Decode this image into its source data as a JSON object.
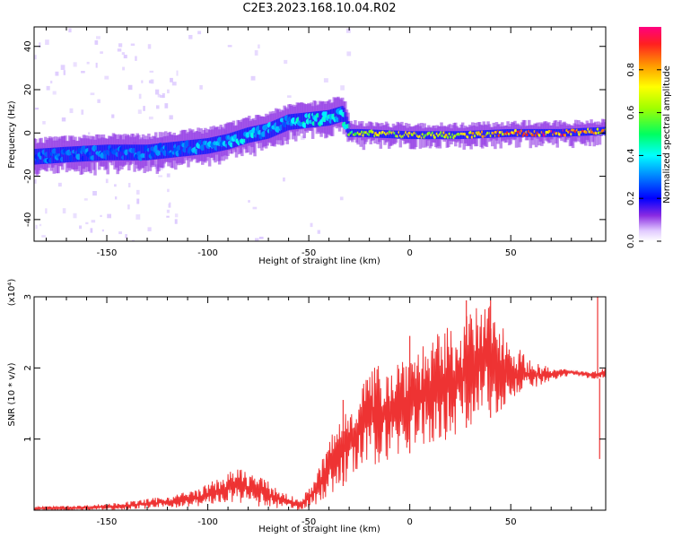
{
  "figure": {
    "title": "C2E3.2023.168.10.04.R02"
  },
  "chart_data": [
    {
      "type": "heatmap",
      "xlabel": "Height of straight line (km)",
      "ylabel": "Frequency (Hz)",
      "xlim": [
        -186,
        97
      ],
      "ylim": [
        -50,
        49
      ],
      "xticks": [
        -150,
        -100,
        -50,
        0,
        50
      ],
      "yticks": [
        -40,
        -20,
        0,
        20,
        40
      ],
      "colorbar": {
        "label": "Normalized spectral amplitude",
        "range": [
          0,
          1
        ],
        "ticks": [
          0.0,
          0.2,
          0.4,
          0.6,
          0.8
        ]
      },
      "trend": {
        "x": [
          -186,
          -170,
          -150,
          -130,
          -110,
          -100,
          -90,
          -80,
          -70,
          -60,
          -50,
          -40,
          -33,
          -30,
          -25,
          0,
          25,
          50,
          75,
          97
        ],
        "y": [
          -11,
          -10,
          -9,
          -9,
          -7,
          -6,
          -4,
          -1,
          1,
          5,
          6,
          7,
          9,
          0,
          0,
          -1,
          -1,
          0,
          0,
          1
        ],
        "amp": [
          0.3,
          0.3,
          0.3,
          0.3,
          0.33,
          0.35,
          0.35,
          0.4,
          0.35,
          0.35,
          0.45,
          0.4,
          0.4,
          0.55,
          0.7,
          0.72,
          0.75,
          0.85,
          0.95,
          0.8
        ]
      }
    },
    {
      "type": "line",
      "xlabel": "Height of straight line (km)",
      "ylabel": "SNR (10 * v/v)",
      "y_scale_note": "(x10⁴)",
      "xlim": [
        -186,
        97
      ],
      "ylim": [
        0,
        3
      ],
      "xticks": [
        -150,
        -100,
        -50,
        0,
        50
      ],
      "yticks": [
        1,
        2,
        3
      ],
      "color": "#ee3333",
      "envelope": {
        "x": [
          -186,
          -160,
          -140,
          -120,
          -105,
          -95,
          -85,
          -75,
          -65,
          -55,
          -50,
          -45,
          -40,
          -35,
          -30,
          -25,
          -20,
          -10,
          0,
          10,
          20,
          30,
          40,
          50,
          60,
          70,
          80,
          90,
          97
        ],
        "min": [
          0.0,
          0.0,
          0.01,
          0.03,
          0.05,
          0.08,
          0.1,
          0.05,
          0.02,
          0.0,
          0.03,
          0.1,
          0.2,
          0.3,
          0.4,
          0.5,
          0.6,
          0.7,
          0.8,
          0.9,
          1.0,
          1.2,
          1.3,
          1.5,
          1.7,
          1.8,
          1.9,
          1.85,
          1.85
        ],
        "max": [
          0.05,
          0.07,
          0.12,
          0.2,
          0.3,
          0.45,
          0.6,
          0.5,
          0.3,
          0.15,
          0.3,
          0.6,
          1.0,
          1.3,
          1.5,
          1.8,
          2.0,
          2.1,
          2.3,
          2.4,
          2.6,
          2.8,
          2.95,
          2.4,
          2.1,
          2.0,
          1.98,
          1.95,
          2.0
        ]
      },
      "spikes": [
        {
          "x": 0,
          "y": 2.45
        },
        {
          "x": 28,
          "y": 2.95
        },
        {
          "x": 40,
          "y": 2.95
        },
        {
          "x": 93,
          "y": 3.0
        },
        {
          "x": 94,
          "y": 0.72
        },
        {
          "x": -33,
          "y": 1.55
        }
      ]
    }
  ]
}
